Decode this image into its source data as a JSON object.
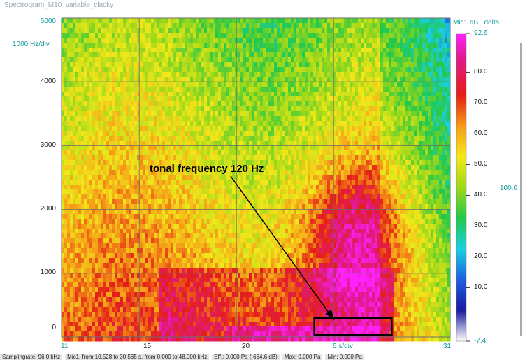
{
  "window_title": "Spectrogram_M10_variable_clacky",
  "colors": {
    "axis_text": "#0d9aa0",
    "annotation_box": "#000000"
  },
  "chart_data": {
    "type": "heatmap",
    "title": "Spectrogram_M10_variable_clacky",
    "x_axis": {
      "range": [
        11,
        31
      ],
      "ticks": [
        "11",
        "15",
        "20",
        "25",
        "31"
      ],
      "division_label": "5 s/div"
    },
    "y_axis": {
      "range": [
        0,
        5000
      ],
      "ticks": [
        "0",
        "1000",
        "2000",
        "3000",
        "4000",
        "5000"
      ],
      "division_label": "1000 Hz/div"
    },
    "colorbar": {
      "channel_label": "Mic1",
      "unit": "dB",
      "mode": "delta",
      "range_indicator": "100.0",
      "min_label": "-7.4",
      "max_label": "92.6",
      "ticks": [
        "80.0",
        "70.0",
        "60.0",
        "50.0",
        "40.0",
        "30.0",
        "20.0",
        "10.0"
      ]
    },
    "annotation": {
      "text": "tonal frequency 120 Hz",
      "target_x": 25,
      "target_y": 120,
      "box_x": [
        24,
        28
      ],
      "box_y": [
        0,
        250
      ]
    },
    "grid": true
  },
  "status_bar": [
    "Samplingrate: 96.0 kHz",
    "Mic1, from 10.528 to 30.565 s, from 0.000 to 48.000 kHz",
    "Eff.: 0.000 Pa (-664.6 dB)",
    "Max: 0.000 Pa",
    "Min: 0.000 Pa"
  ]
}
